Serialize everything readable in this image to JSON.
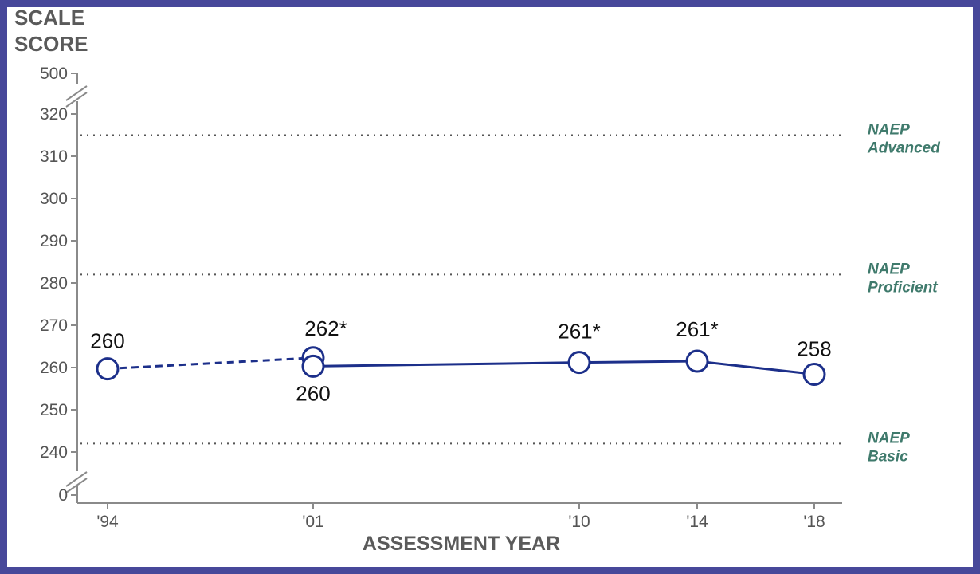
{
  "chart_data": {
    "type": "line",
    "ylabel_lines": [
      "SCALE",
      "SCORE"
    ],
    "xlabel": "ASSESSMENT YEAR",
    "categories": [
      "'94",
      "'01",
      "'10",
      "'14",
      "'18"
    ],
    "y_ticks": [
      0,
      240,
      250,
      260,
      270,
      280,
      290,
      300,
      310,
      320,
      500
    ],
    "ylim_main": [
      240,
      320
    ],
    "axis_breaks": [
      "between 0 and 240",
      "between 320 and 500"
    ],
    "grid": false,
    "series": [
      {
        "style": "dashed",
        "color": "#1c2f8a",
        "points": [
          {
            "x": "'94",
            "y": 259.7,
            "label": "260"
          },
          {
            "x": "'01",
            "y": 262.3,
            "label": "262*"
          }
        ]
      },
      {
        "style": "solid",
        "color": "#1c2f8a",
        "points": [
          {
            "x": "'01",
            "y": 260.3,
            "label": "260"
          },
          {
            "x": "'10",
            "y": 261.2,
            "label": "261*"
          },
          {
            "x": "'14",
            "y": 261.5,
            "label": "261*"
          },
          {
            "x": "'18",
            "y": 258.4,
            "label": "258"
          }
        ]
      }
    ],
    "reference_lines": [
      {
        "y": 315,
        "lines": [
          "NAEP",
          "Advanced"
        ]
      },
      {
        "y": 282,
        "lines": [
          "NAEP",
          "Proficient"
        ]
      },
      {
        "y": 242,
        "lines": [
          "NAEP",
          "Basic"
        ]
      }
    ]
  }
}
